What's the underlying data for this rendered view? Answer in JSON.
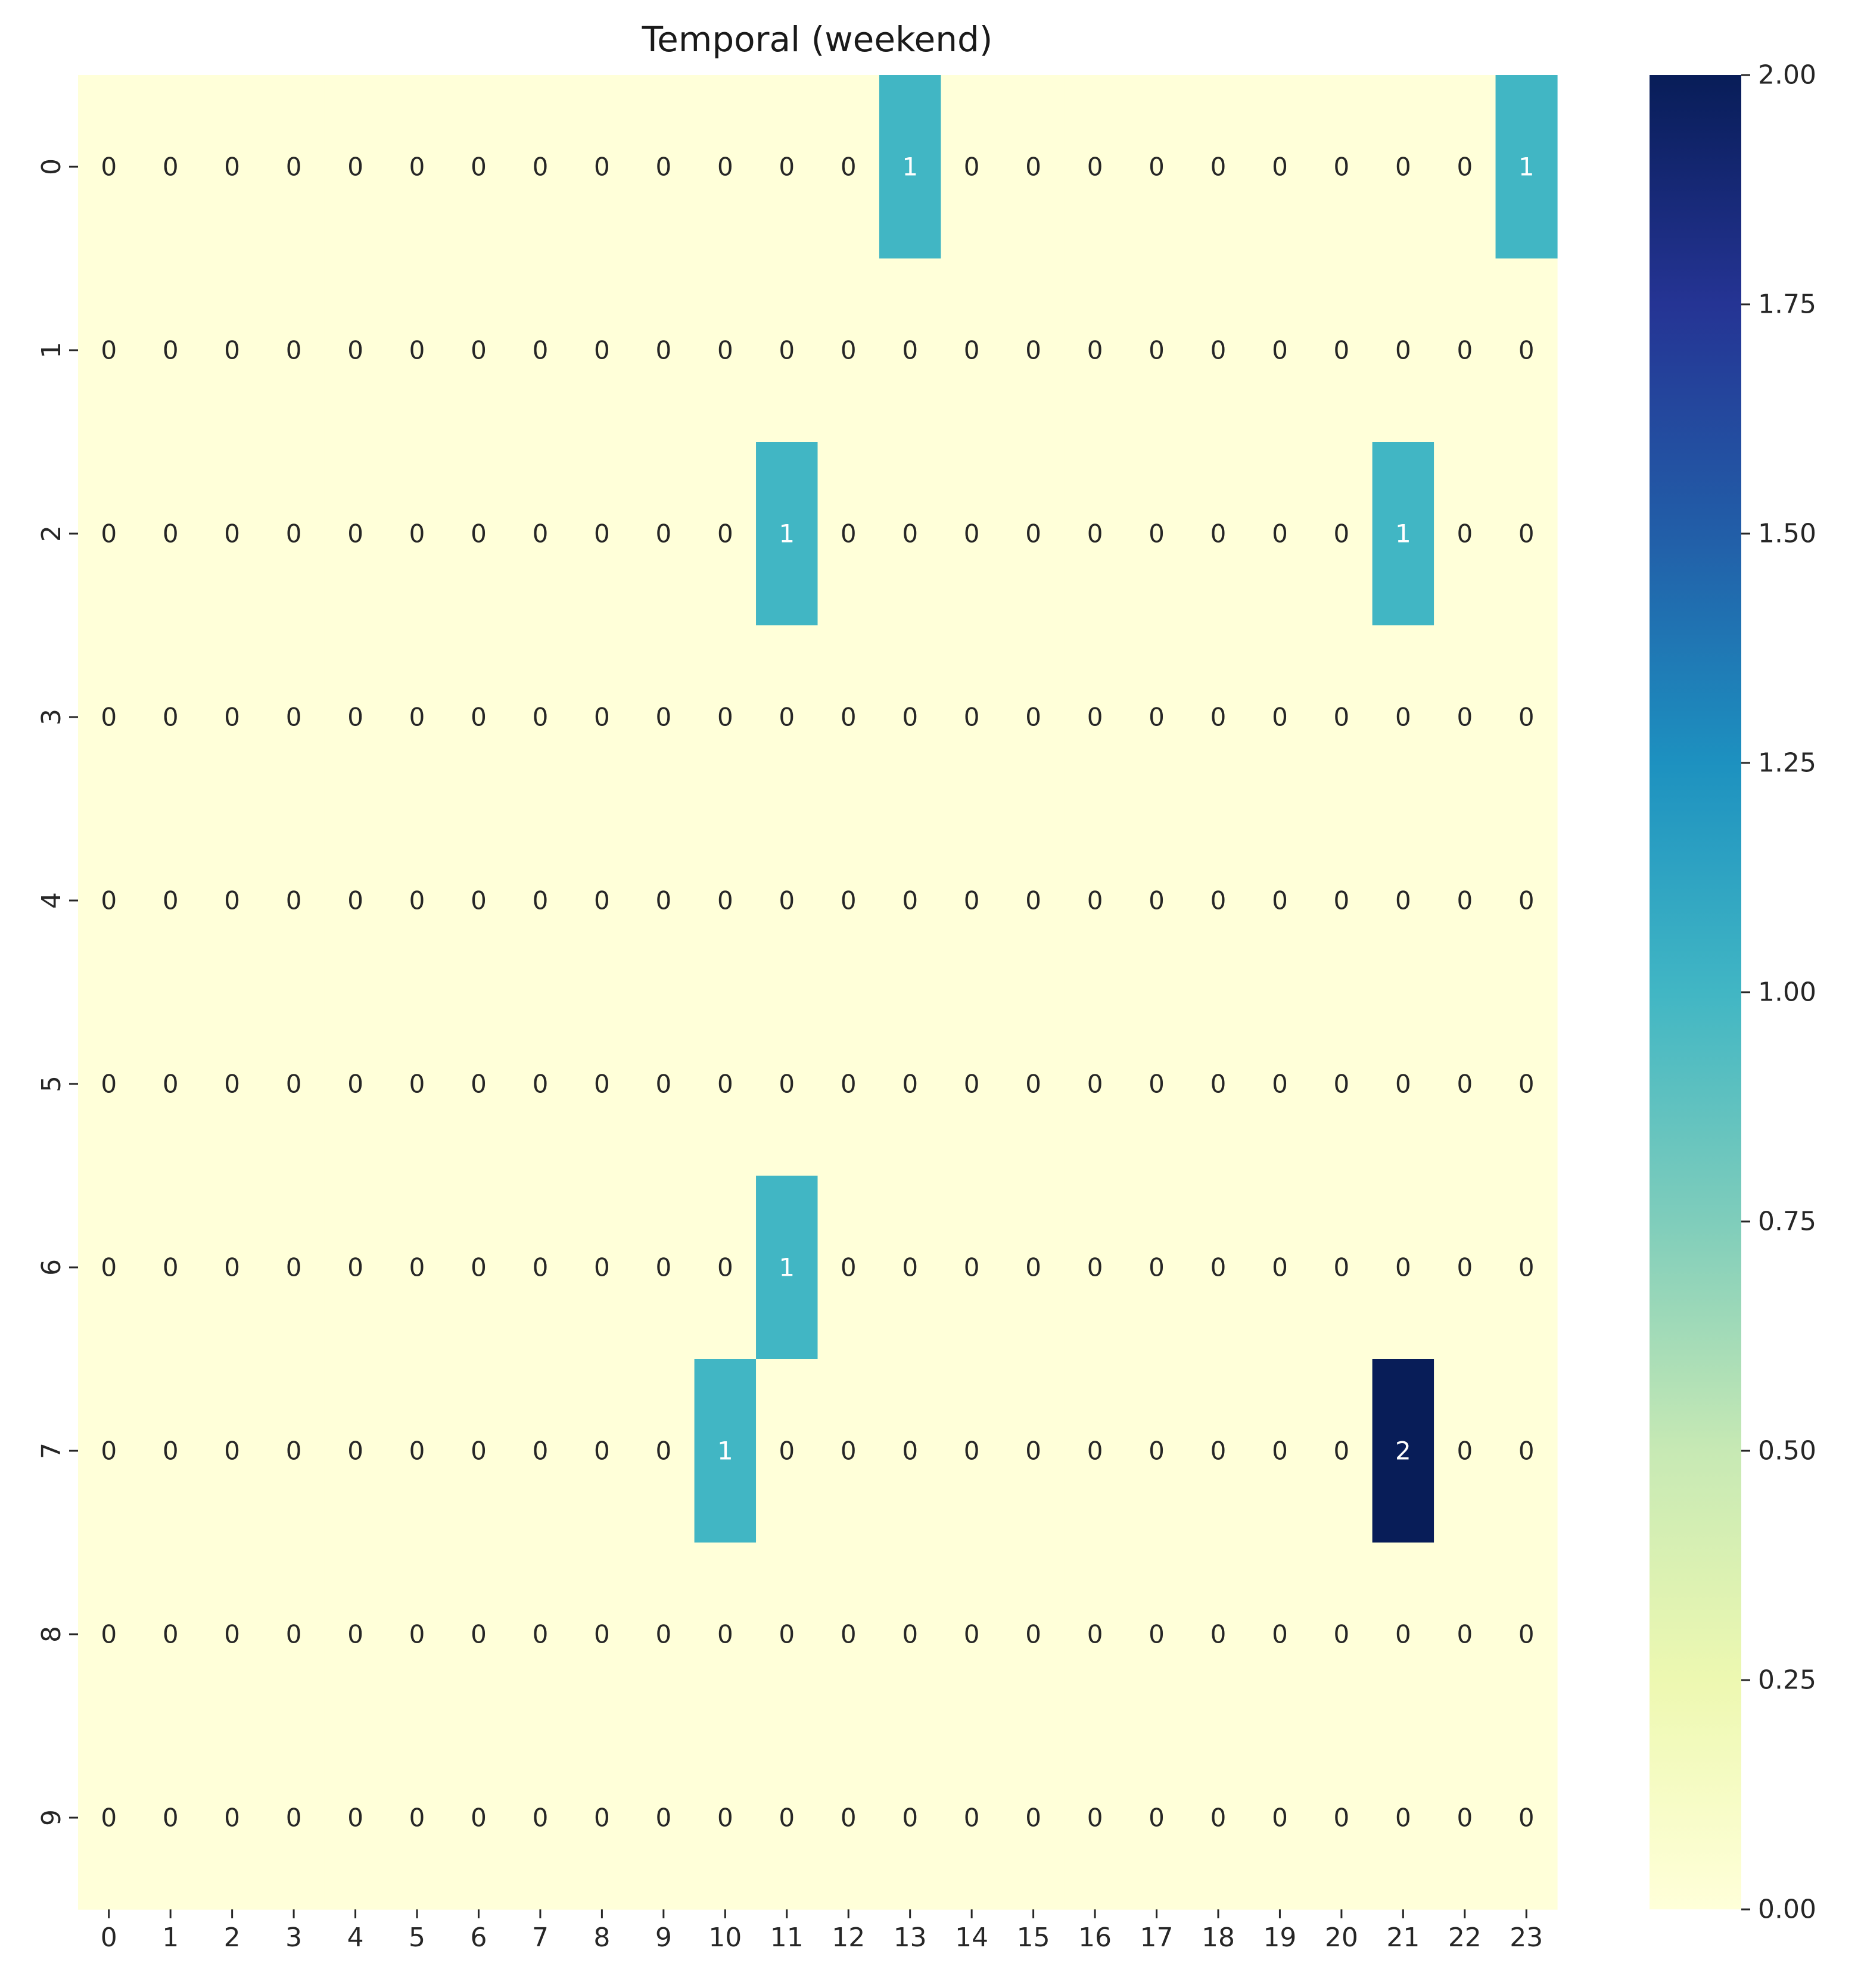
{
  "chart_data": {
    "type": "heatmap",
    "title": "Temporal (weekend)",
    "xlabel": "",
    "ylabel": "",
    "x_categories": [
      "0",
      "1",
      "2",
      "3",
      "4",
      "5",
      "6",
      "7",
      "8",
      "9",
      "10",
      "11",
      "12",
      "13",
      "14",
      "15",
      "16",
      "17",
      "18",
      "19",
      "20",
      "21",
      "22",
      "23"
    ],
    "y_categories": [
      "0",
      "1",
      "2",
      "3",
      "4",
      "5",
      "6",
      "7",
      "8",
      "9"
    ],
    "values": [
      [
        0,
        0,
        0,
        0,
        0,
        0,
        0,
        0,
        0,
        0,
        0,
        0,
        0,
        1,
        0,
        0,
        0,
        0,
        0,
        0,
        0,
        0,
        0,
        1
      ],
      [
        0,
        0,
        0,
        0,
        0,
        0,
        0,
        0,
        0,
        0,
        0,
        0,
        0,
        0,
        0,
        0,
        0,
        0,
        0,
        0,
        0,
        0,
        0,
        0
      ],
      [
        0,
        0,
        0,
        0,
        0,
        0,
        0,
        0,
        0,
        0,
        0,
        1,
        0,
        0,
        0,
        0,
        0,
        0,
        0,
        0,
        0,
        1,
        0,
        0
      ],
      [
        0,
        0,
        0,
        0,
        0,
        0,
        0,
        0,
        0,
        0,
        0,
        0,
        0,
        0,
        0,
        0,
        0,
        0,
        0,
        0,
        0,
        0,
        0,
        0
      ],
      [
        0,
        0,
        0,
        0,
        0,
        0,
        0,
        0,
        0,
        0,
        0,
        0,
        0,
        0,
        0,
        0,
        0,
        0,
        0,
        0,
        0,
        0,
        0,
        0
      ],
      [
        0,
        0,
        0,
        0,
        0,
        0,
        0,
        0,
        0,
        0,
        0,
        0,
        0,
        0,
        0,
        0,
        0,
        0,
        0,
        0,
        0,
        0,
        0,
        0
      ],
      [
        0,
        0,
        0,
        0,
        0,
        0,
        0,
        0,
        0,
        0,
        0,
        1,
        0,
        0,
        0,
        0,
        0,
        0,
        0,
        0,
        0,
        0,
        0,
        0
      ],
      [
        0,
        0,
        0,
        0,
        0,
        0,
        0,
        0,
        0,
        0,
        1,
        0,
        0,
        0,
        0,
        0,
        0,
        0,
        0,
        0,
        0,
        2,
        0,
        0
      ],
      [
        0,
        0,
        0,
        0,
        0,
        0,
        0,
        0,
        0,
        0,
        0,
        0,
        0,
        0,
        0,
        0,
        0,
        0,
        0,
        0,
        0,
        0,
        0,
        0
      ],
      [
        0,
        0,
        0,
        0,
        0,
        0,
        0,
        0,
        0,
        0,
        0,
        0,
        0,
        0,
        0,
        0,
        0,
        0,
        0,
        0,
        0,
        0,
        0,
        0
      ]
    ],
    "vmin": 0,
    "vmax": 2,
    "colormap": "YlGnBu",
    "colorbar_ticks": [
      "0.00",
      "0.25",
      "0.50",
      "0.75",
      "1.00",
      "1.25",
      "1.50",
      "1.75",
      "2.00"
    ],
    "annotated": true,
    "grid": false,
    "legend": "colorbar-right"
  }
}
